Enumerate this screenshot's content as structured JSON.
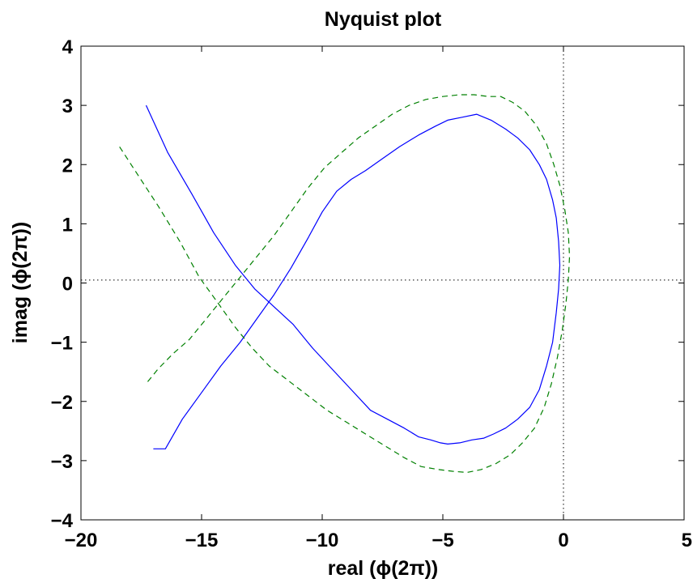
{
  "chart_data": {
    "type": "line",
    "title": "Nyquist plot",
    "xlabel": "real (ϕ(2π))",
    "ylabel": "imag (ϕ(2π))",
    "xlim": [
      -20,
      5
    ],
    "ylim": [
      -4,
      4
    ],
    "x_ticks": [
      "−20",
      "−15",
      "−10",
      "−5",
      "0",
      "5"
    ],
    "y_ticks": [
      "−4",
      "−3",
      "−2",
      "−1",
      "0",
      "1",
      "2",
      "3",
      "4"
    ],
    "grid": false,
    "reference_lines": {
      "x": 0,
      "y": 0.05
    },
    "series": [
      {
        "color": "#0000ff",
        "style": "solid",
        "x": [
          -17.3,
          -16.4,
          -15.4,
          -14.5,
          -13.6,
          -12.8,
          -12.0,
          -11.2,
          -10.4,
          -9.6,
          -8.8,
          -8.0,
          -7.3,
          -6.6,
          -6.0,
          -5.5,
          -5.1,
          -4.8,
          -4.3,
          -3.8,
          -3.3,
          -2.9,
          -2.4,
          -1.9,
          -1.4,
          -1.0,
          -0.7,
          -0.45,
          -0.3,
          -0.2,
          -0.15,
          -0.2,
          -0.3,
          -0.45,
          -0.7,
          -1.0,
          -1.4,
          -1.9,
          -2.4,
          -3.0,
          -3.6,
          -4.2,
          -4.8,
          -5.3,
          -6.0,
          -6.8,
          -7.5,
          -8.2,
          -8.8,
          -9.4,
          -10.0,
          -10.6,
          -11.3,
          -12.0,
          -12.7,
          -13.4,
          -14.2,
          -15.0,
          -15.8,
          -16.5,
          -17.0
        ],
        "y": [
          3.0,
          2.2,
          1.5,
          0.85,
          0.3,
          -0.1,
          -0.4,
          -0.7,
          -1.1,
          -1.45,
          -1.8,
          -2.15,
          -2.3,
          -2.45,
          -2.6,
          -2.65,
          -2.7,
          -2.72,
          -2.7,
          -2.65,
          -2.62,
          -2.55,
          -2.45,
          -2.3,
          -2.1,
          -1.8,
          -1.4,
          -1.0,
          -0.5,
          -0.1,
          0.3,
          0.7,
          1.1,
          1.4,
          1.75,
          2.0,
          2.25,
          2.45,
          2.6,
          2.75,
          2.85,
          2.8,
          2.75,
          2.65,
          2.5,
          2.3,
          2.1,
          1.9,
          1.75,
          1.55,
          1.2,
          0.75,
          0.25,
          -0.2,
          -0.6,
          -1.0,
          -1.4,
          -1.85,
          -2.3,
          -2.8,
          -2.8
        ]
      },
      {
        "color": "#008000",
        "style": "dashed",
        "x": [
          -18.4,
          -17.6,
          -16.8,
          -15.9,
          -15.1,
          -14.3,
          -13.6,
          -12.9,
          -12.2,
          -11.4,
          -10.6,
          -9.8,
          -9.0,
          -8.2,
          -7.4,
          -6.6,
          -5.9,
          -5.2,
          -4.6,
          -4.0,
          -3.4,
          -2.8,
          -2.2,
          -1.7,
          -1.2,
          -0.8,
          -0.5,
          -0.25,
          -0.05,
          0.1,
          0.2,
          0.25,
          0.2,
          0.05,
          -0.15,
          -0.4,
          -0.7,
          -1.1,
          -1.6,
          -2.1,
          -2.6,
          -3.1,
          -3.7,
          -4.3,
          -5.0,
          -5.7,
          -6.4,
          -7.1,
          -7.8,
          -8.5,
          -9.2,
          -9.9,
          -10.6,
          -11.3,
          -12.0,
          -12.7,
          -13.4,
          -14.1,
          -14.8,
          -15.5,
          -16.2,
          -16.8,
          -17.3
        ],
        "y": [
          2.3,
          1.8,
          1.3,
          0.7,
          0.1,
          -0.35,
          -0.75,
          -1.1,
          -1.4,
          -1.65,
          -1.9,
          -2.15,
          -2.35,
          -2.55,
          -2.75,
          -2.95,
          -3.1,
          -3.15,
          -3.18,
          -3.2,
          -3.15,
          -3.05,
          -2.9,
          -2.7,
          -2.45,
          -2.1,
          -1.7,
          -1.25,
          -0.8,
          -0.35,
          0.05,
          0.45,
          0.85,
          1.25,
          1.65,
          2.0,
          2.35,
          2.65,
          2.9,
          3.05,
          3.15,
          3.15,
          3.18,
          3.18,
          3.15,
          3.1,
          3.0,
          2.85,
          2.65,
          2.45,
          2.2,
          1.95,
          1.6,
          1.2,
          0.8,
          0.45,
          0.1,
          -0.25,
          -0.6,
          -0.95,
          -1.2,
          -1.45,
          -1.7
        ]
      }
    ]
  }
}
